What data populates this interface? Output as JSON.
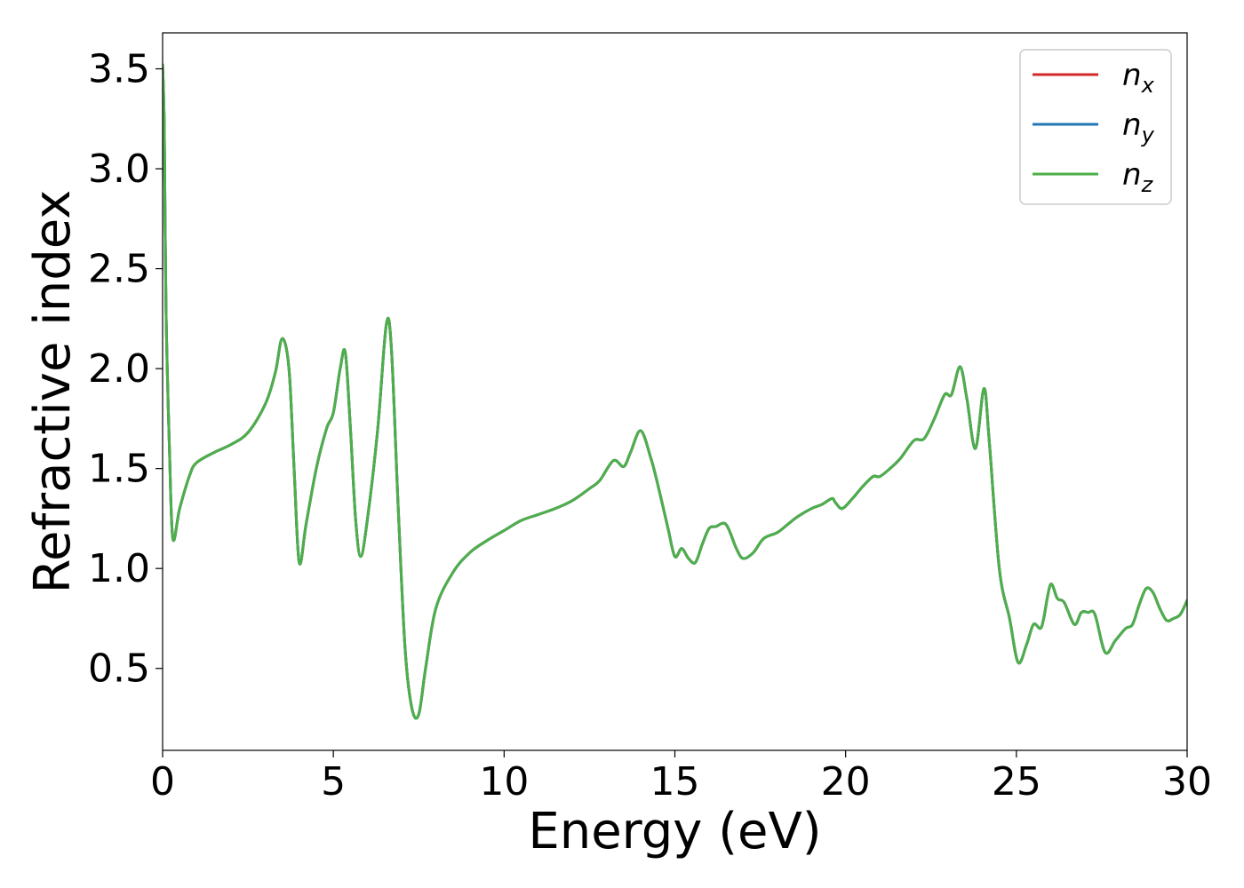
{
  "chart_data": {
    "type": "line",
    "xlabel": "Energy (eV)",
    "ylabel": "Refractive index",
    "xlim": [
      0,
      30
    ],
    "ylim": [
      0.09,
      3.68
    ],
    "xticks": [
      0,
      5,
      10,
      15,
      20,
      25,
      30
    ],
    "xtick_labels": [
      "0",
      "5",
      "10",
      "15",
      "20",
      "25",
      "30"
    ],
    "yticks": [
      0.5,
      1.0,
      1.5,
      2.0,
      2.5,
      3.0,
      3.5
    ],
    "ytick_labels": [
      "0.5",
      "1.0",
      "1.5",
      "2.0",
      "2.5",
      "3.0",
      "3.5"
    ],
    "grid": false,
    "legend_position": "top-right",
    "series": [
      {
        "name": "n_x",
        "label_base": "n",
        "label_sub": "x",
        "color": "#d62728"
      },
      {
        "name": "n_y",
        "label_base": "n",
        "label_sub": "y",
        "color": "#1f77b4"
      },
      {
        "name": "n_z",
        "label_base": "n",
        "label_sub": "z",
        "color": "#4daf4a"
      }
    ],
    "x": [
      0,
      0.05,
      0.1,
      0.2,
      0.3,
      0.5,
      0.8,
      1.0,
      1.5,
      2.0,
      2.5,
      3.0,
      3.3,
      3.5,
      3.7,
      3.85,
      4.0,
      4.2,
      4.5,
      4.8,
      5.0,
      5.2,
      5.35,
      5.5,
      5.65,
      5.8,
      6.0,
      6.3,
      6.55,
      6.7,
      6.9,
      7.1,
      7.3,
      7.5,
      7.7,
      8.0,
      8.5,
      9.0,
      9.5,
      10.0,
      10.5,
      11.0,
      11.5,
      12.0,
      12.5,
      12.8,
      13.2,
      13.5,
      13.7,
      14.0,
      14.3,
      14.5,
      14.8,
      15.0,
      15.2,
      15.4,
      15.6,
      15.8,
      16.0,
      16.2,
      16.5,
      16.8,
      17.0,
      17.3,
      17.6,
      18.0,
      18.3,
      18.6,
      19.0,
      19.3,
      19.6,
      19.7,
      19.9,
      20.2,
      20.5,
      20.8,
      21.0,
      21.3,
      21.6,
      22.0,
      22.3,
      22.6,
      22.9,
      23.1,
      23.35,
      23.55,
      23.8,
      24.05,
      24.2,
      24.5,
      24.8,
      25.05,
      25.3,
      25.5,
      25.7,
      25.8,
      26.0,
      26.2,
      26.4,
      26.7,
      26.9,
      27.1,
      27.3,
      27.6,
      27.9,
      28.2,
      28.4,
      28.6,
      28.8,
      29.0,
      29.2,
      29.4,
      29.6,
      29.8,
      30.0
    ],
    "y": [
      3.52,
      3.2,
      2.3,
      1.6,
      1.15,
      1.3,
      1.47,
      1.53,
      1.58,
      1.62,
      1.68,
      1.82,
      1.98,
      2.15,
      2.0,
      1.5,
      1.03,
      1.22,
      1.5,
      1.7,
      1.78,
      2.0,
      2.08,
      1.7,
      1.25,
      1.06,
      1.25,
      1.7,
      2.22,
      2.1,
      1.3,
      0.6,
      0.3,
      0.27,
      0.5,
      0.8,
      0.98,
      1.08,
      1.14,
      1.19,
      1.24,
      1.27,
      1.3,
      1.34,
      1.4,
      1.44,
      1.54,
      1.51,
      1.58,
      1.69,
      1.55,
      1.42,
      1.2,
      1.06,
      1.1,
      1.05,
      1.03,
      1.12,
      1.2,
      1.21,
      1.22,
      1.1,
      1.05,
      1.08,
      1.15,
      1.18,
      1.22,
      1.26,
      1.3,
      1.32,
      1.35,
      1.33,
      1.3,
      1.35,
      1.41,
      1.46,
      1.46,
      1.5,
      1.55,
      1.64,
      1.65,
      1.75,
      1.87,
      1.87,
      2.01,
      1.85,
      1.6,
      1.9,
      1.65,
      1.0,
      0.75,
      0.53,
      0.62,
      0.72,
      0.7,
      0.75,
      0.92,
      0.85,
      0.83,
      0.72,
      0.78,
      0.78,
      0.77,
      0.58,
      0.64,
      0.7,
      0.72,
      0.82,
      0.9,
      0.88,
      0.8,
      0.74,
      0.75,
      0.77,
      0.84
    ]
  }
}
